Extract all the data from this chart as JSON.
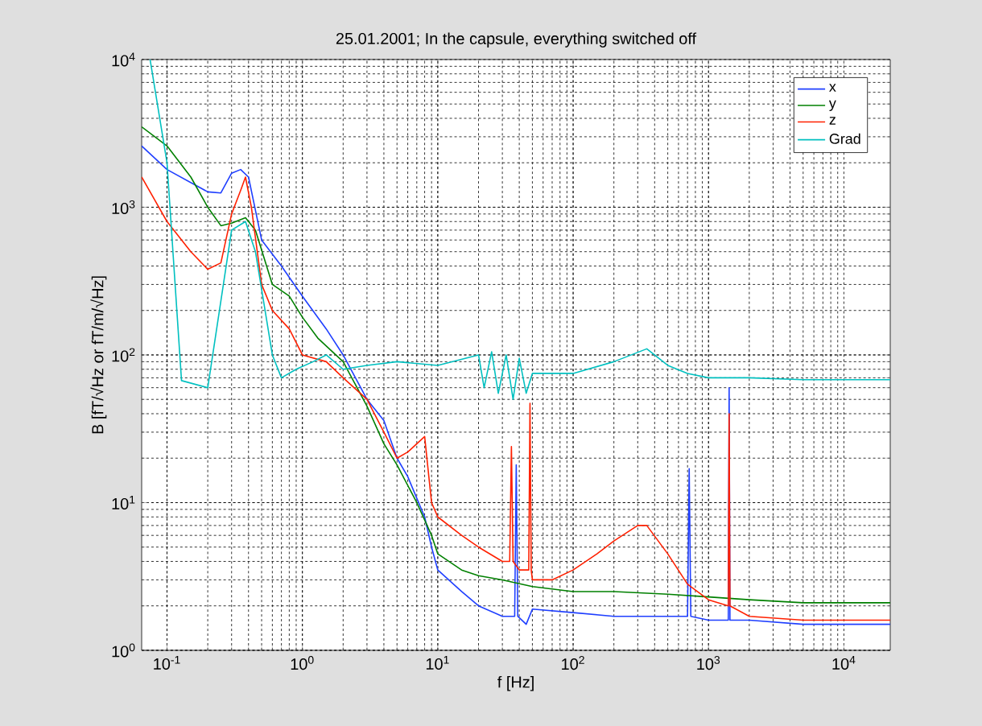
{
  "chart_data": {
    "type": "line",
    "title": "25.01.2001; In the capsule, everything switched off",
    "xlabel": "f [Hz]",
    "ylabel": "B [fT/√Hz or fT/m/√Hz]",
    "log": "xy",
    "grid": true,
    "legend": "top right",
    "xlim": [
      0.065,
      22000
    ],
    "ylim": [
      1,
      10000
    ],
    "xticks": [
      {
        "value": 0.1,
        "label": "10$^{-1}$"
      },
      {
        "value": 1,
        "label": "10$^{0}$"
      },
      {
        "value": 10,
        "label": "10$^{1}$"
      },
      {
        "value": 100,
        "label": "10$^{2}$"
      },
      {
        "value": 1000,
        "label": "10$^{3}$"
      },
      {
        "value": 10000,
        "label": "10$^{4}$"
      }
    ],
    "yticks": [
      {
        "value": 1,
        "label": "10$^{0}$"
      },
      {
        "value": 10,
        "label": "10$^{1}$"
      },
      {
        "value": 100,
        "label": "10$^{2}$"
      },
      {
        "value": 1000,
        "label": "10$^{3}$"
      },
      {
        "value": 10000,
        "label": "10$^{4}$"
      }
    ],
    "series": [
      {
        "name": "x",
        "color": "#1f3fff",
        "x": [
          0.065,
          0.1,
          0.2,
          0.25,
          0.3,
          0.35,
          0.4,
          0.5,
          0.7,
          1,
          1.5,
          2,
          3,
          4,
          5,
          6,
          8,
          9,
          10,
          15,
          20,
          30,
          37,
          38,
          39,
          45,
          50,
          100,
          200,
          500,
          700,
          720,
          740,
          1000,
          1400,
          1420,
          1440,
          2000,
          5000,
          10000,
          22000
        ],
        "values": [
          2600,
          1800,
          1270,
          1250,
          1700,
          1800,
          1600,
          600,
          400,
          250,
          150,
          100,
          50,
          36,
          20,
          15,
          8,
          5,
          3.5,
          2.5,
          2,
          1.7,
          1.7,
          18,
          1.7,
          1.5,
          1.9,
          1.8,
          1.7,
          1.7,
          1.7,
          17,
          1.7,
          1.6,
          1.6,
          60,
          1.6,
          1.6,
          1.5,
          1.5,
          1.5
        ]
      },
      {
        "name": "y",
        "color": "#008000",
        "x": [
          0.065,
          0.1,
          0.15,
          0.2,
          0.25,
          0.3,
          0.38,
          0.45,
          0.6,
          0.8,
          1,
          1.3,
          2,
          3,
          4,
          5,
          7,
          9,
          10,
          15,
          20,
          30,
          50,
          100,
          200,
          500,
          1000,
          2000,
          5000,
          22000
        ],
        "values": [
          3500,
          2600,
          1600,
          1000,
          750,
          780,
          850,
          700,
          300,
          250,
          180,
          130,
          90,
          45,
          25,
          18,
          10,
          6,
          4.5,
          3.5,
          3.2,
          3,
          2.7,
          2.5,
          2.5,
          2.4,
          2.3,
          2.2,
          2.1,
          2.1
        ]
      },
      {
        "name": "z",
        "color": "#ff2000",
        "x": [
          0.065,
          0.1,
          0.15,
          0.2,
          0.25,
          0.3,
          0.35,
          0.38,
          0.42,
          0.5,
          0.6,
          0.8,
          1,
          1.5,
          2,
          3,
          4,
          5,
          6,
          8,
          9,
          10,
          15,
          20,
          30,
          34,
          35,
          36,
          40,
          47,
          48,
          49,
          50,
          70,
          100,
          150,
          200,
          300,
          350,
          500,
          700,
          1000,
          1400,
          1420,
          1440,
          2000,
          5000,
          10000,
          22000
        ],
        "values": [
          1600,
          800,
          500,
          380,
          420,
          900,
          1300,
          1600,
          1000,
          300,
          200,
          150,
          100,
          90,
          70,
          50,
          30,
          20,
          22,
          28,
          10,
          8,
          6,
          5,
          4,
          4,
          24,
          4,
          3.5,
          3.5,
          47,
          3.5,
          3,
          3,
          3.5,
          4.5,
          5.5,
          7,
          7,
          4.5,
          2.8,
          2.2,
          2,
          40,
          2,
          1.7,
          1.6,
          1.6,
          1.6
        ]
      },
      {
        "name": "Grad",
        "color": "#00c0c0",
        "x": [
          0.075,
          0.1,
          0.128,
          0.2,
          0.3,
          0.38,
          0.45,
          0.6,
          0.7,
          0.9,
          1.2,
          1.5,
          2,
          3,
          5,
          10,
          20,
          22,
          25,
          28,
          32,
          36,
          40,
          45,
          50,
          100,
          200,
          350,
          500,
          700,
          1000,
          2000,
          5000,
          10000,
          22000
        ],
        "values": [
          10000,
          2000,
          67,
          60,
          700,
          800,
          500,
          100,
          70,
          80,
          90,
          100,
          80,
          85,
          90,
          85,
          100,
          60,
          105,
          55,
          100,
          50,
          95,
          55,
          75,
          75,
          90,
          110,
          85,
          75,
          70,
          70,
          68,
          68,
          68
        ]
      }
    ]
  }
}
